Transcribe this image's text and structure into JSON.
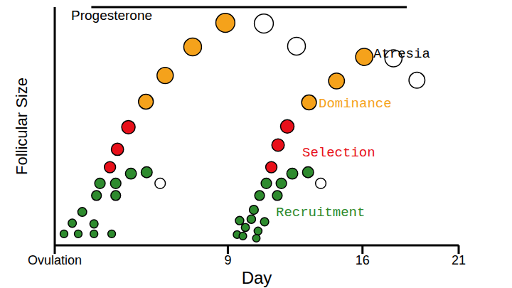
{
  "chart_data": {
    "type": "scatter",
    "x_label": "Day",
    "y_label": "Follicular Size",
    "xlim": [
      0,
      21
    ],
    "xticks": [
      {
        "value": 0,
        "label": "Ovulation"
      },
      9,
      16,
      21
    ],
    "ylim": [
      0,
      100
    ],
    "tick_labels": "x",
    "grid": false,
    "annotations": [
      {
        "text": "Progesterone",
        "x": [
          1.9,
          18.3
        ],
        "y": 100
      }
    ],
    "series": [
      {
        "name": "Recruitment",
        "color": "#2e8b2e",
        "marker": "circle",
        "x": [
          0.48,
          1.22,
          2.04,
          2.96,
          0.91,
          2.04,
          1.43,
          2.17,
          3.17,
          2.35,
          3.17,
          3.96,
          4.78,
          9.48,
          9.91,
          10.57,
          9.61,
          10.22,
          10.91,
          10.35,
          9.78,
          10.48,
          10.65,
          11.57,
          11,
          11.78,
          12.35,
          13.17
        ],
        "y": [
          4.8,
          4.8,
          4.8,
          4.8,
          9.3,
          9,
          14,
          20.9,
          20.9,
          26,
          26,
          30.1,
          30.7,
          4.5,
          7.5,
          6,
          10.4,
          11,
          9.9,
          14.9,
          3.9,
          3,
          20.9,
          20.9,
          26,
          26,
          30.1,
          30.7
        ]
      },
      {
        "name": "Selection",
        "color": "#e8101a",
        "marker": "circle",
        "x": [
          2.87,
          3.26,
          3.83,
          11.26,
          11.61,
          12.09
        ],
        "y": [
          32.8,
          40.3,
          49.6,
          32.8,
          42.1,
          49.9
        ]
      },
      {
        "name": "Dominance",
        "color": "#f5a21b",
        "marker": "circle",
        "x": [
          4.74,
          5.74,
          7.17,
          8.87,
          13.22,
          14.65,
          16.09
        ],
        "y": [
          60.3,
          71.3,
          83.3,
          93.4,
          60,
          69,
          79.1
        ]
      },
      {
        "name": "Atresia",
        "color": "#ffffff",
        "marker": "circle",
        "x": [
          5.48,
          10.87,
          12.57,
          13.83,
          17.61,
          18.83
        ],
        "y": [
          26,
          93.1,
          83.6,
          26,
          78.5,
          69.3
        ]
      }
    ]
  }
}
